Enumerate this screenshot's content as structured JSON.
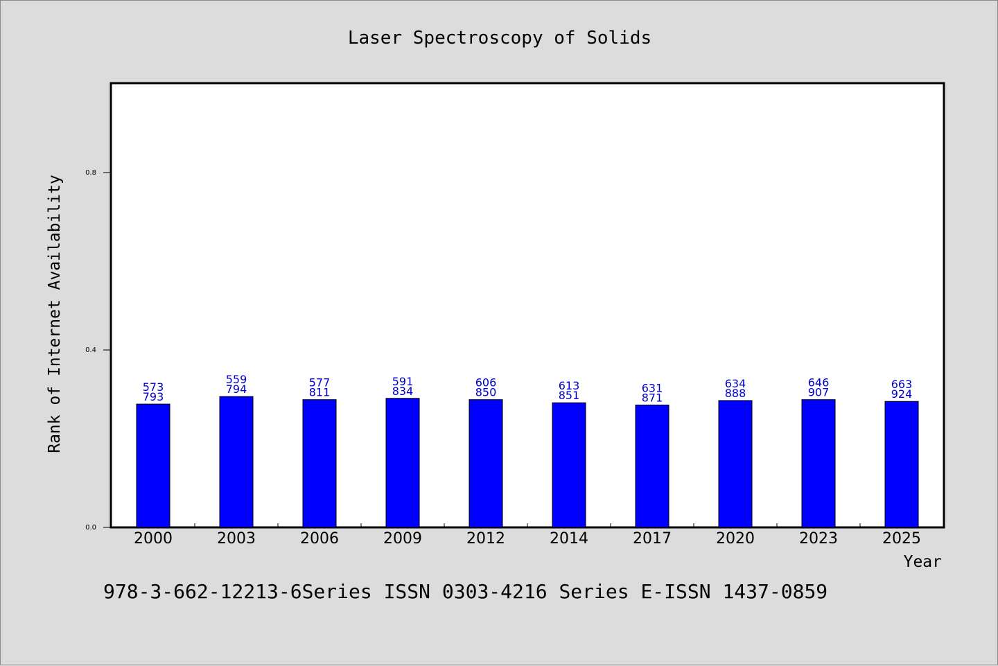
{
  "chart_data": {
    "type": "bar",
    "title": "Laser Spectroscopy of Solids",
    "xlabel": "Year",
    "ylabel": "Rank of Internet Availability",
    "footer": "978-3-662-12213-6Series ISSN 0303-4216 Series E-ISSN 1437-0859",
    "categories": [
      "2000",
      "2003",
      "2006",
      "2009",
      "2012",
      "2014",
      "2017",
      "2020",
      "2023",
      "2025"
    ],
    "values": [
      0.278,
      0.295,
      0.288,
      0.291,
      0.288,
      0.281,
      0.276,
      0.286,
      0.288,
      0.284
    ],
    "labels_top": [
      "573",
      "559",
      "577",
      "591",
      "606",
      "613",
      "631",
      "634",
      "646",
      "663"
    ],
    "labels_bottom": [
      "793",
      "794",
      "811",
      "834",
      "850",
      "851",
      "871",
      "888",
      "907",
      "924"
    ],
    "ylim": [
      0,
      1.0
    ],
    "yticks": [
      "0.0",
      "0.4",
      "0.8"
    ],
    "grid": false,
    "legend": "none",
    "colors": {
      "bar": "#0000ff",
      "label": "#0000cc",
      "background": "#dcdcdc",
      "plot": "#ffffff"
    }
  }
}
